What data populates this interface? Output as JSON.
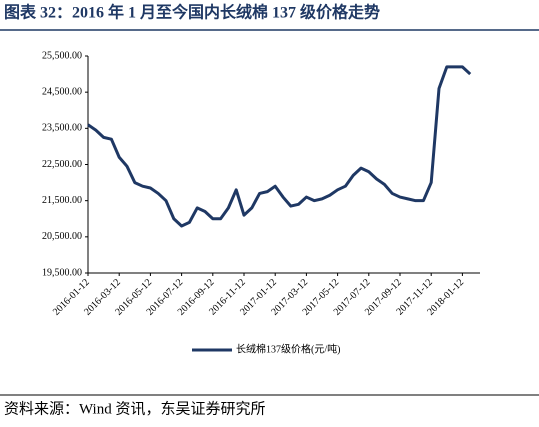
{
  "header": {
    "title": "图表 32：2016 年 1 月至今国内长绒棉 137 级价格走势"
  },
  "chart_data": {
    "type": "line",
    "categories": [
      "2016-01-12",
      null,
      null,
      null,
      "2016-03-12",
      null,
      null,
      null,
      "2016-05-12",
      null,
      null,
      null,
      "2016-07-12",
      null,
      null,
      null,
      "2016-09-12",
      null,
      null,
      null,
      "2016-11-12",
      null,
      null,
      null,
      "2017-01-12",
      null,
      null,
      null,
      "2017-03-12",
      null,
      null,
      null,
      "2017-05-12",
      null,
      null,
      null,
      "2017-07-12",
      null,
      null,
      null,
      "2017-09-12",
      null,
      null,
      null,
      "2017-11-12",
      null,
      null,
      null,
      "2018-01-12",
      null
    ],
    "series": [
      {
        "name": "长绒棉137级价格(元/吨)",
        "color": "#1f3864",
        "values": [
          23600,
          23450,
          23250,
          23200,
          22700,
          22450,
          22000,
          21900,
          21850,
          21700,
          21500,
          21000,
          20800,
          20900,
          21300,
          21200,
          21000,
          21000,
          21300,
          21800,
          21100,
          21300,
          21700,
          21750,
          21900,
          21600,
          21350,
          21400,
          21600,
          21500,
          21550,
          21650,
          21800,
          21900,
          22200,
          22400,
          22300,
          22100,
          21950,
          21700,
          21600,
          21550,
          21500,
          21500,
          22000,
          24600,
          25200,
          25200,
          25200,
          25000
        ]
      }
    ],
    "ylim": [
      19500,
      25500
    ],
    "yticks": [
      {
        "value": 19500,
        "label": "19,500.00"
      },
      {
        "value": 20500,
        "label": "20,500.00"
      },
      {
        "value": 21500,
        "label": "21,500.00"
      },
      {
        "value": 22500,
        "label": "22,500.00"
      },
      {
        "value": 23500,
        "label": "23,500.00"
      },
      {
        "value": 24500,
        "label": "24,500.00"
      },
      {
        "value": 25500,
        "label": "25,500.00"
      }
    ]
  },
  "footer": {
    "source": "资料来源：Wind 资讯，东吴证券研究所"
  }
}
